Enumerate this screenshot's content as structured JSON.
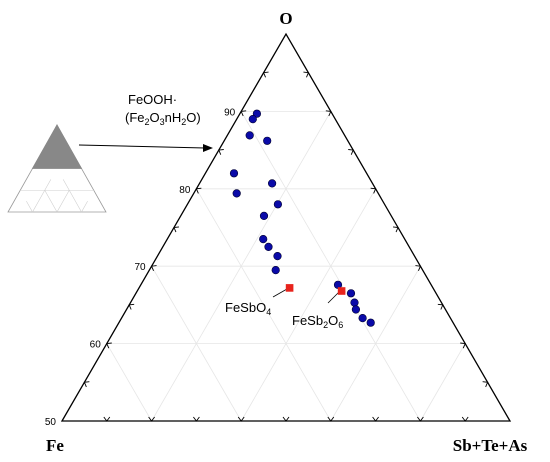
{
  "chart_data": {
    "type": "scatter",
    "plot": "ternary",
    "vertices": {
      "top": "O",
      "left": "Fe",
      "right": "Sb+Te+As"
    },
    "o_axis_ticks": [
      "50",
      "60",
      "70",
      "80",
      "90"
    ],
    "o_axis_range": [
      50,
      100
    ],
    "grid": true,
    "samples": [
      {
        "o": 89.7,
        "fe": 8.4
      },
      {
        "o": 89.0,
        "fe": 9.2
      },
      {
        "o": 86.9,
        "fe": 10.6
      },
      {
        "o": 86.2,
        "fe": 9.0
      },
      {
        "o": 82.0,
        "fe": 14.8
      },
      {
        "o": 80.7,
        "fe": 11.2
      },
      {
        "o": 79.4,
        "fe": 15.8
      },
      {
        "o": 78.0,
        "fe": 11.9
      },
      {
        "o": 76.5,
        "fe": 14.2
      },
      {
        "o": 73.5,
        "fe": 15.8
      },
      {
        "o": 72.5,
        "fe": 15.7
      },
      {
        "o": 71.3,
        "fe": 15.3
      },
      {
        "o": 69.5,
        "fe": 16.4
      },
      {
        "o": 67.6,
        "fe": 10.4
      },
      {
        "o": 66.5,
        "fe": 9.5
      },
      {
        "o": 65.3,
        "fe": 9.7
      },
      {
        "o": 64.4,
        "fe": 10.0
      },
      {
        "o": 63.3,
        "fe": 9.8
      },
      {
        "o": 62.7,
        "fe": 9.2
      }
    ],
    "reference_points": [
      {
        "name": "FeSbO4",
        "o": 67.2,
        "fe": 16.0
      },
      {
        "name": "FeSb2O6",
        "o": 66.8,
        "fe": 10.4
      }
    ],
    "annotation": {
      "line1": "FeOOH·",
      "line2_parts": [
        "(Fe",
        "2",
        "O",
        "3",
        "nH",
        "2",
        "O)"
      ]
    },
    "colors": {
      "sample": "#0a0aa8",
      "reference": "#e8231c",
      "inset_fill": "#888888"
    }
  }
}
